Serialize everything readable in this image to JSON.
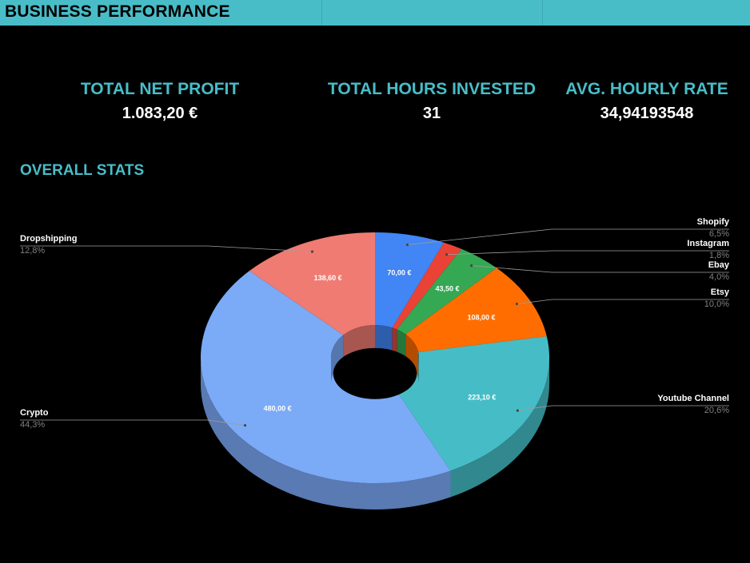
{
  "header": {
    "title": "BUSINESS PERFORMANCE"
  },
  "colors": {
    "accent": "#48bdc8",
    "label_teal": "#48bdc8",
    "background": "#000000"
  },
  "kpis": {
    "profit": {
      "label": "TOTAL NET PROFIT",
      "value": "1.083,20 €"
    },
    "hours": {
      "label": "TOTAL HOURS INVESTED",
      "value": "31"
    },
    "rate": {
      "label": "AVG. HOURLY RATE",
      "value": "34,94193548"
    }
  },
  "section": {
    "title": "OVERALL STATS"
  },
  "chart_data": {
    "type": "pie",
    "style": "3d-donut",
    "title": "",
    "series": [
      {
        "name": "Shopify",
        "value": 70.0,
        "value_label": "70,00 €",
        "percent_label": "6,5%",
        "color": "#4285f4"
      },
      {
        "name": "Instagram",
        "value": 19.5,
        "value_label": "",
        "percent_label": "1,8%",
        "color": "#ea4335"
      },
      {
        "name": "Ebay",
        "value": 43.5,
        "value_label": "43,50 €",
        "percent_label": "4,0%",
        "color": "#34a853"
      },
      {
        "name": "Etsy",
        "value": 108.0,
        "value_label": "108,00 €",
        "percent_label": "10,0%",
        "color": "#ff6d01"
      },
      {
        "name": "Youtube Channel",
        "value": 223.1,
        "value_label": "223,10 €",
        "percent_label": "20,6%",
        "color": "#46bdc6"
      },
      {
        "name": "Crypto",
        "value": 480.0,
        "value_label": "480,00 €",
        "percent_label": "44,3%",
        "color": "#7baaf7"
      },
      {
        "name": "Dropshipping",
        "value": 138.6,
        "value_label": "138,60 €",
        "percent_label": "12,8%",
        "color": "#f07b72"
      }
    ]
  }
}
